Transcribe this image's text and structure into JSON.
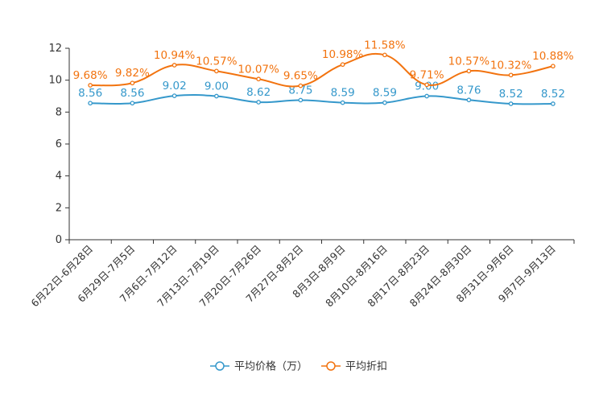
{
  "chart_data": {
    "type": "line",
    "title": "",
    "xlabel": "",
    "ylabel": "",
    "ylim": [
      0,
      12
    ],
    "yticks": [
      "0",
      "2",
      "4",
      "6",
      "8",
      "10",
      "12"
    ],
    "grid": false,
    "legend_position": "bottom-center",
    "categories": [
      "6月22日-6月28日",
      "6月29日-7月5日",
      "7月6日-7月12日",
      "7月13日-7月19日",
      "7月20日-7月26日",
      "7月27日-8月2日",
      "8月3日-8月9日",
      "8月10日-8月16日",
      "8月17日-8月23日",
      "8月24日-8月30日",
      "8月31日-9月6日",
      "9月7日-9月13日"
    ],
    "series": [
      {
        "name": "平均价格（万）",
        "color": "#3598cb",
        "values": [
          8.56,
          8.56,
          9.02,
          9.0,
          8.62,
          8.75,
          8.59,
          8.59,
          9.0,
          8.76,
          8.52,
          8.52
        ],
        "labels": [
          "8.56",
          "8.56",
          "9.02",
          "9.00",
          "8.62",
          "8.75",
          "8.59",
          "8.59",
          "9.00",
          "8.76",
          "8.52",
          "8.52"
        ]
      },
      {
        "name": "平均折扣",
        "color": "#f2730f",
        "values": [
          9.68,
          9.82,
          10.94,
          10.57,
          10.07,
          9.65,
          10.98,
          11.58,
          9.71,
          10.57,
          10.32,
          10.88
        ],
        "labels": [
          "9.68%",
          "9.82%",
          "10.94%",
          "10.57%",
          "10.07%",
          "9.65%",
          "10.98%",
          "11.58%",
          "9.71%",
          "10.57%",
          "10.32%",
          "10.88%"
        ]
      }
    ]
  }
}
